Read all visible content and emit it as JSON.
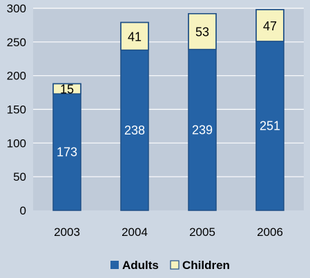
{
  "chart_data": {
    "type": "bar",
    "stacked": true,
    "categories": [
      "2003",
      "2004",
      "2005",
      "2006"
    ],
    "series": [
      {
        "name": "Adults",
        "values": [
          173,
          238,
          239,
          251
        ],
        "color": "#2563a6"
      },
      {
        "name": "Children",
        "values": [
          15,
          41,
          53,
          47
        ],
        "color": "#f7f3bf"
      }
    ],
    "yticks": [
      "0",
      "50",
      "100",
      "150",
      "200",
      "250",
      "300"
    ],
    "ylim": [
      0,
      300
    ],
    "grid": true,
    "gridlines": [
      50,
      100,
      150,
      200,
      250,
      300
    ],
    "legend_position": "bottom-center",
    "colors": {
      "background": "#cdd7e3",
      "plot_area": "#c0cbd9",
      "gridline": "#ffffff",
      "bar_outline": "#1f4f86",
      "adult_label": "#ffffff",
      "children_label": "#000000"
    }
  }
}
